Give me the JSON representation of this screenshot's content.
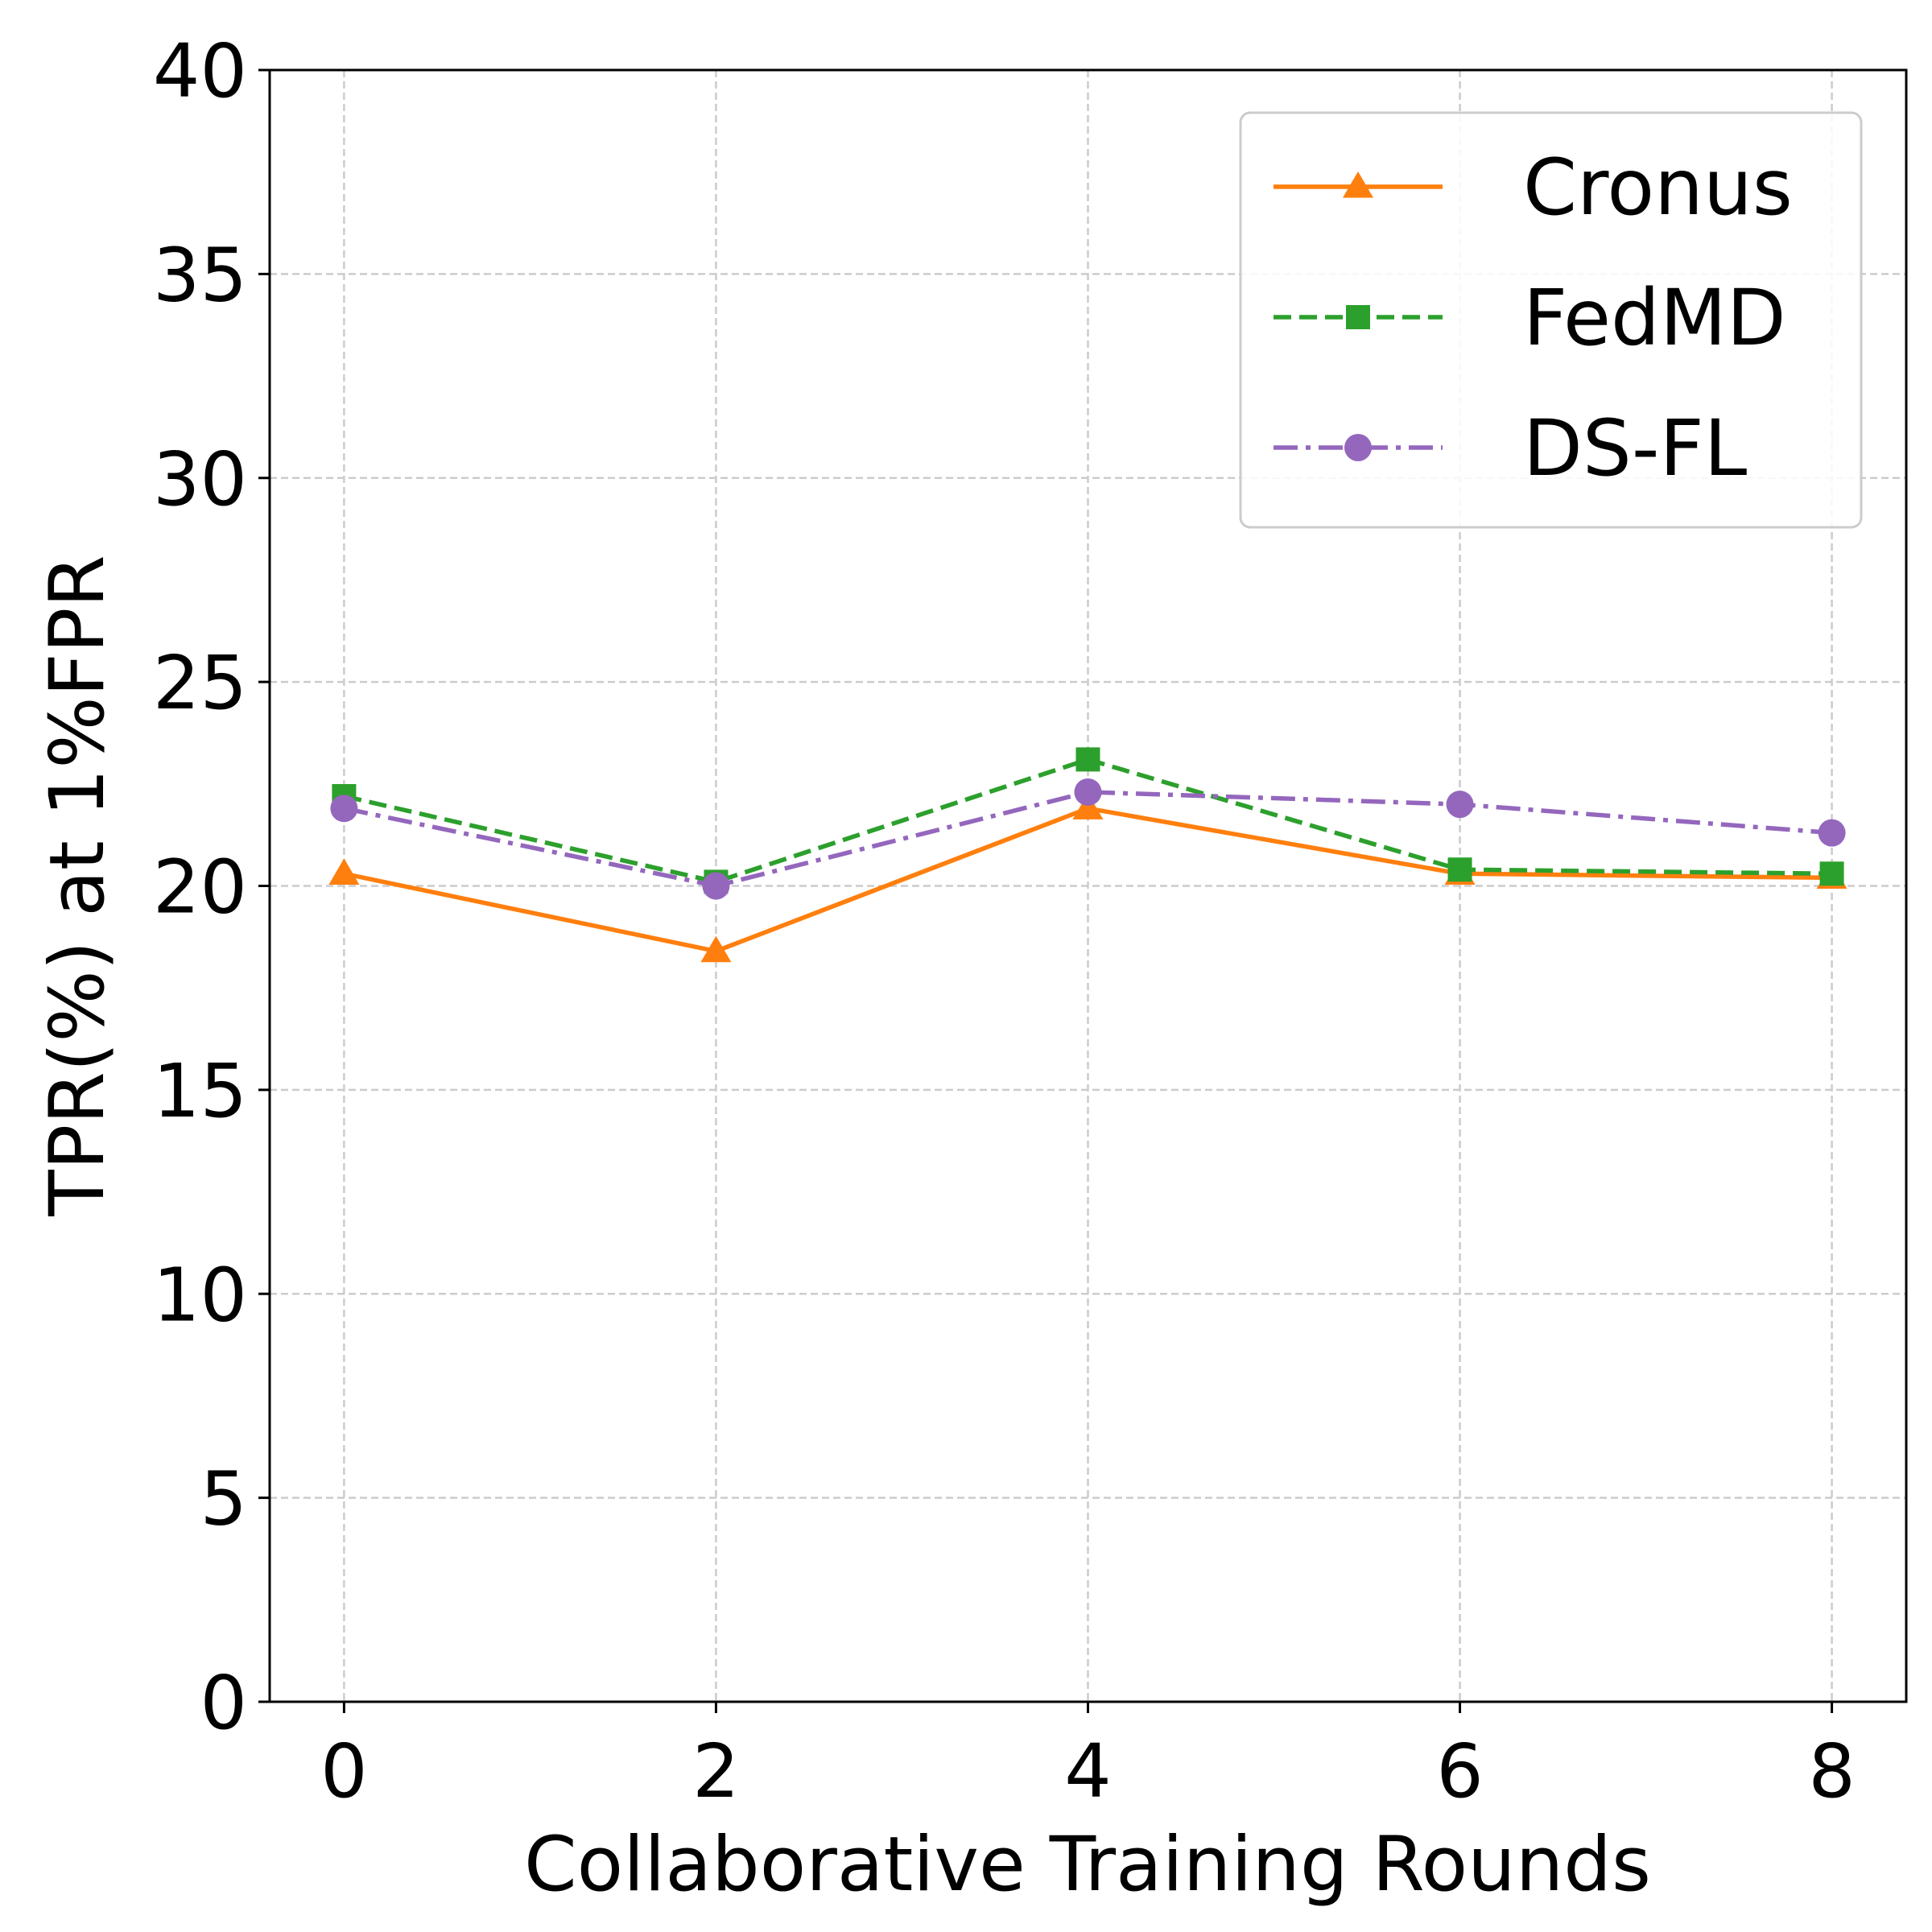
{
  "chart_data": {
    "type": "line",
    "title": "",
    "xlabel": "Collaborative Training Rounds",
    "ylabel": "TPR(%) at 1%FPR",
    "x": [
      0,
      2,
      4,
      6,
      8
    ],
    "xticks": [
      "0",
      "2",
      "4",
      "6",
      "8"
    ],
    "yticks": [
      "0",
      "5",
      "10",
      "15",
      "20",
      "25",
      "30",
      "35",
      "40"
    ],
    "xlim": [
      -0.4,
      8.4
    ],
    "ylim": [
      0,
      40
    ],
    "grid": true,
    "legend": "top-right",
    "series": [
      {
        "name": "Cronus",
        "values": [
          20.3,
          18.4,
          21.9,
          20.3,
          20.2
        ],
        "color": "#ff7f0e",
        "marker": "triangle",
        "linestyle": "solid"
      },
      {
        "name": "FedMD",
        "values": [
          22.2,
          20.1,
          23.1,
          20.4,
          20.3
        ],
        "color": "#2ca02c",
        "marker": "square",
        "linestyle": "dashed"
      },
      {
        "name": "DS-FL",
        "values": [
          21.9,
          20.0,
          22.3,
          22.0,
          21.3
        ],
        "color": "#9467bd",
        "marker": "circle",
        "linestyle": "dashdot"
      }
    ]
  }
}
